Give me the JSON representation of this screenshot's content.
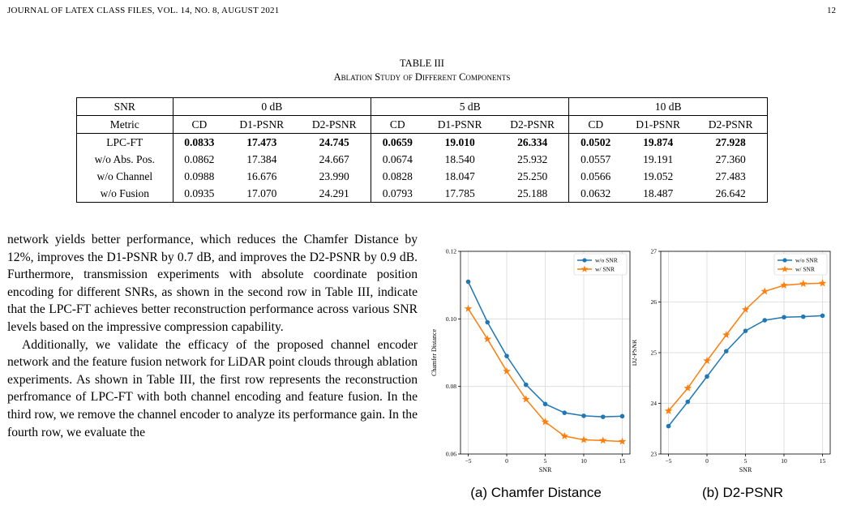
{
  "header": {
    "running_head": "JOURNAL OF LATEX CLASS FILES, VOL. 14, NO. 8, AUGUST 2021",
    "page_number": "12"
  },
  "table": {
    "label": "TABLE III",
    "title": "Ablation Study of Different Components",
    "snr_header": "SNR",
    "snr_groups": [
      "0 dB",
      "5 dB",
      "10 dB"
    ],
    "metric_header": "Metric",
    "metrics": [
      "CD",
      "D1-PSNR",
      "D2-PSNR",
      "CD",
      "D1-PSNR",
      "D2-PSNR",
      "CD",
      "D1-PSNR",
      "D2-PSNR"
    ],
    "rows": [
      {
        "name": "LPC-FT",
        "values": [
          "0.0833",
          "17.473",
          "24.745",
          "0.0659",
          "19.010",
          "26.334",
          "0.0502",
          "19.874",
          "27.928"
        ]
      },
      {
        "name": "w/o Abs. Pos.",
        "values": [
          "0.0862",
          "17.384",
          "24.667",
          "0.0674",
          "18.540",
          "25.932",
          "0.0557",
          "19.191",
          "27.360"
        ]
      },
      {
        "name": "w/o Channel",
        "values": [
          "0.0988",
          "16.676",
          "23.990",
          "0.0828",
          "18.047",
          "25.250",
          "0.0566",
          "19.052",
          "27.483"
        ]
      },
      {
        "name": "w/o Fusion",
        "values": [
          "0.0935",
          "17.070",
          "24.291",
          "0.0793",
          "17.785",
          "25.188",
          "0.0632",
          "18.487",
          "26.642"
        ]
      }
    ]
  },
  "body": {
    "p1": "network yields better performance, which reduces the Chamfer Distance by 12%, improves the D1-PSNR by 0.7 dB, and improves the D2-PSNR by 0.9 dB. Furthermore, transmission experiments with absolute coordinate position encoding for different SNRs, as shown in the second row in Table III, indicate that the LPC-FT achieves better reconstruction performance across various SNR levels based on the impressive compression capability.",
    "p2": "Additionally, we validate the efficacy of the proposed channel encoder network and the feature fusion network for LiDAR point clouds through ablation experiments. As shown in Table III, the first row represents the reconstruction perfromance of LPC-FT with both channel encoding and feature fusion. In the third row, we remove the channel encoder to analyze its performance gain. In the fourth row, we evaluate the"
  },
  "chart_data": [
    {
      "type": "line",
      "caption": "(a) Chamfer Distance",
      "xlabel": "SNR",
      "ylabel": "Chamfer Distance",
      "x": [
        -5,
        -2.5,
        0,
        2.5,
        5,
        7.5,
        10,
        12.5,
        15
      ],
      "xlim": [
        -6,
        16
      ],
      "ylim": [
        0.06,
        0.12
      ],
      "xticks": [
        -5,
        0,
        5,
        10,
        15
      ],
      "yticks": [
        0.06,
        0.08,
        0.1,
        0.12
      ],
      "ytick_labels": [
        "0.06",
        "0.08",
        "0.10",
        "0.12"
      ],
      "grid": true,
      "legend": "top-right",
      "series": [
        {
          "name": "w/o SNR",
          "color": "#1f77b4",
          "marker": "circle",
          "values": [
            0.111,
            0.099,
            0.089,
            0.0805,
            0.0748,
            0.0722,
            0.0713,
            0.071,
            0.0712
          ]
        },
        {
          "name": "w/ SNR",
          "color": "#ff7f0e",
          "marker": "star",
          "values": [
            0.103,
            0.094,
            0.0845,
            0.0762,
            0.0695,
            0.0653,
            0.0642,
            0.064,
            0.0637
          ]
        }
      ]
    },
    {
      "type": "line",
      "caption": "(b) D2-PSNR",
      "xlabel": "SNR",
      "ylabel": "D2-PSNR",
      "x": [
        -5,
        -2.5,
        0,
        2.5,
        5,
        7.5,
        10,
        12.5,
        15
      ],
      "xlim": [
        -6,
        16
      ],
      "ylim": [
        23,
        27
      ],
      "xticks": [
        -5,
        0,
        5,
        10,
        15
      ],
      "yticks": [
        23,
        24,
        25,
        26,
        27
      ],
      "ytick_labels": [
        "23",
        "24",
        "25",
        "26",
        "27"
      ],
      "grid": true,
      "legend": "top-right",
      "series": [
        {
          "name": "w/o SNR",
          "color": "#1f77b4",
          "marker": "circle",
          "values": [
            23.55,
            24.03,
            24.53,
            25.03,
            25.43,
            25.64,
            25.7,
            25.71,
            25.73
          ]
        },
        {
          "name": "w/ SNR",
          "color": "#ff7f0e",
          "marker": "star",
          "values": [
            23.85,
            24.3,
            24.84,
            25.35,
            25.85,
            26.21,
            26.33,
            26.36,
            26.37
          ]
        }
      ]
    }
  ]
}
